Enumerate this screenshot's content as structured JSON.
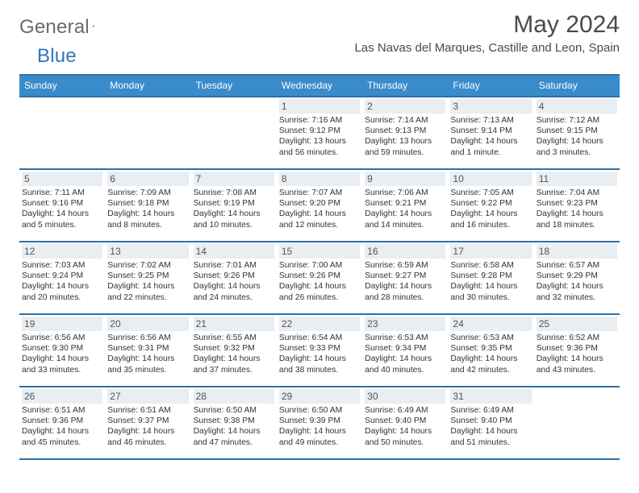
{
  "brand": {
    "name_gray": "General",
    "name_blue": "Blue"
  },
  "title": "May 2024",
  "location": "Las Navas del Marques, Castille and Leon, Spain",
  "colors": {
    "header_bg": "#3a8bc9",
    "header_border": "#2d6fa8",
    "daynum_bg": "#e9eef3",
    "text": "#333333",
    "brand_gray": "#6a6a6a",
    "brand_blue": "#2d77bd"
  },
  "daynames": [
    "Sunday",
    "Monday",
    "Tuesday",
    "Wednesday",
    "Thursday",
    "Friday",
    "Saturday"
  ],
  "weeks": [
    [
      {
        "empty": true
      },
      {
        "empty": true
      },
      {
        "empty": true
      },
      {
        "num": "1",
        "sunrise": "Sunrise: 7:16 AM",
        "sunset": "Sunset: 9:12 PM",
        "day1": "Daylight: 13 hours",
        "day2": "and 56 minutes."
      },
      {
        "num": "2",
        "sunrise": "Sunrise: 7:14 AM",
        "sunset": "Sunset: 9:13 PM",
        "day1": "Daylight: 13 hours",
        "day2": "and 59 minutes."
      },
      {
        "num": "3",
        "sunrise": "Sunrise: 7:13 AM",
        "sunset": "Sunset: 9:14 PM",
        "day1": "Daylight: 14 hours",
        "day2": "and 1 minute."
      },
      {
        "num": "4",
        "sunrise": "Sunrise: 7:12 AM",
        "sunset": "Sunset: 9:15 PM",
        "day1": "Daylight: 14 hours",
        "day2": "and 3 minutes."
      }
    ],
    [
      {
        "num": "5",
        "sunrise": "Sunrise: 7:11 AM",
        "sunset": "Sunset: 9:16 PM",
        "day1": "Daylight: 14 hours",
        "day2": "and 5 minutes."
      },
      {
        "num": "6",
        "sunrise": "Sunrise: 7:09 AM",
        "sunset": "Sunset: 9:18 PM",
        "day1": "Daylight: 14 hours",
        "day2": "and 8 minutes."
      },
      {
        "num": "7",
        "sunrise": "Sunrise: 7:08 AM",
        "sunset": "Sunset: 9:19 PM",
        "day1": "Daylight: 14 hours",
        "day2": "and 10 minutes."
      },
      {
        "num": "8",
        "sunrise": "Sunrise: 7:07 AM",
        "sunset": "Sunset: 9:20 PM",
        "day1": "Daylight: 14 hours",
        "day2": "and 12 minutes."
      },
      {
        "num": "9",
        "sunrise": "Sunrise: 7:06 AM",
        "sunset": "Sunset: 9:21 PM",
        "day1": "Daylight: 14 hours",
        "day2": "and 14 minutes."
      },
      {
        "num": "10",
        "sunrise": "Sunrise: 7:05 AM",
        "sunset": "Sunset: 9:22 PM",
        "day1": "Daylight: 14 hours",
        "day2": "and 16 minutes."
      },
      {
        "num": "11",
        "sunrise": "Sunrise: 7:04 AM",
        "sunset": "Sunset: 9:23 PM",
        "day1": "Daylight: 14 hours",
        "day2": "and 18 minutes."
      }
    ],
    [
      {
        "num": "12",
        "sunrise": "Sunrise: 7:03 AM",
        "sunset": "Sunset: 9:24 PM",
        "day1": "Daylight: 14 hours",
        "day2": "and 20 minutes."
      },
      {
        "num": "13",
        "sunrise": "Sunrise: 7:02 AM",
        "sunset": "Sunset: 9:25 PM",
        "day1": "Daylight: 14 hours",
        "day2": "and 22 minutes."
      },
      {
        "num": "14",
        "sunrise": "Sunrise: 7:01 AM",
        "sunset": "Sunset: 9:26 PM",
        "day1": "Daylight: 14 hours",
        "day2": "and 24 minutes."
      },
      {
        "num": "15",
        "sunrise": "Sunrise: 7:00 AM",
        "sunset": "Sunset: 9:26 PM",
        "day1": "Daylight: 14 hours",
        "day2": "and 26 minutes."
      },
      {
        "num": "16",
        "sunrise": "Sunrise: 6:59 AM",
        "sunset": "Sunset: 9:27 PM",
        "day1": "Daylight: 14 hours",
        "day2": "and 28 minutes."
      },
      {
        "num": "17",
        "sunrise": "Sunrise: 6:58 AM",
        "sunset": "Sunset: 9:28 PM",
        "day1": "Daylight: 14 hours",
        "day2": "and 30 minutes."
      },
      {
        "num": "18",
        "sunrise": "Sunrise: 6:57 AM",
        "sunset": "Sunset: 9:29 PM",
        "day1": "Daylight: 14 hours",
        "day2": "and 32 minutes."
      }
    ],
    [
      {
        "num": "19",
        "sunrise": "Sunrise: 6:56 AM",
        "sunset": "Sunset: 9:30 PM",
        "day1": "Daylight: 14 hours",
        "day2": "and 33 minutes."
      },
      {
        "num": "20",
        "sunrise": "Sunrise: 6:56 AM",
        "sunset": "Sunset: 9:31 PM",
        "day1": "Daylight: 14 hours",
        "day2": "and 35 minutes."
      },
      {
        "num": "21",
        "sunrise": "Sunrise: 6:55 AM",
        "sunset": "Sunset: 9:32 PM",
        "day1": "Daylight: 14 hours",
        "day2": "and 37 minutes."
      },
      {
        "num": "22",
        "sunrise": "Sunrise: 6:54 AM",
        "sunset": "Sunset: 9:33 PM",
        "day1": "Daylight: 14 hours",
        "day2": "and 38 minutes."
      },
      {
        "num": "23",
        "sunrise": "Sunrise: 6:53 AM",
        "sunset": "Sunset: 9:34 PM",
        "day1": "Daylight: 14 hours",
        "day2": "and 40 minutes."
      },
      {
        "num": "24",
        "sunrise": "Sunrise: 6:53 AM",
        "sunset": "Sunset: 9:35 PM",
        "day1": "Daylight: 14 hours",
        "day2": "and 42 minutes."
      },
      {
        "num": "25",
        "sunrise": "Sunrise: 6:52 AM",
        "sunset": "Sunset: 9:36 PM",
        "day1": "Daylight: 14 hours",
        "day2": "and 43 minutes."
      }
    ],
    [
      {
        "num": "26",
        "sunrise": "Sunrise: 6:51 AM",
        "sunset": "Sunset: 9:36 PM",
        "day1": "Daylight: 14 hours",
        "day2": "and 45 minutes."
      },
      {
        "num": "27",
        "sunrise": "Sunrise: 6:51 AM",
        "sunset": "Sunset: 9:37 PM",
        "day1": "Daylight: 14 hours",
        "day2": "and 46 minutes."
      },
      {
        "num": "28",
        "sunrise": "Sunrise: 6:50 AM",
        "sunset": "Sunset: 9:38 PM",
        "day1": "Daylight: 14 hours",
        "day2": "and 47 minutes."
      },
      {
        "num": "29",
        "sunrise": "Sunrise: 6:50 AM",
        "sunset": "Sunset: 9:39 PM",
        "day1": "Daylight: 14 hours",
        "day2": "and 49 minutes."
      },
      {
        "num": "30",
        "sunrise": "Sunrise: 6:49 AM",
        "sunset": "Sunset: 9:40 PM",
        "day1": "Daylight: 14 hours",
        "day2": "and 50 minutes."
      },
      {
        "num": "31",
        "sunrise": "Sunrise: 6:49 AM",
        "sunset": "Sunset: 9:40 PM",
        "day1": "Daylight: 14 hours",
        "day2": "and 51 minutes."
      },
      {
        "empty": true
      }
    ]
  ]
}
